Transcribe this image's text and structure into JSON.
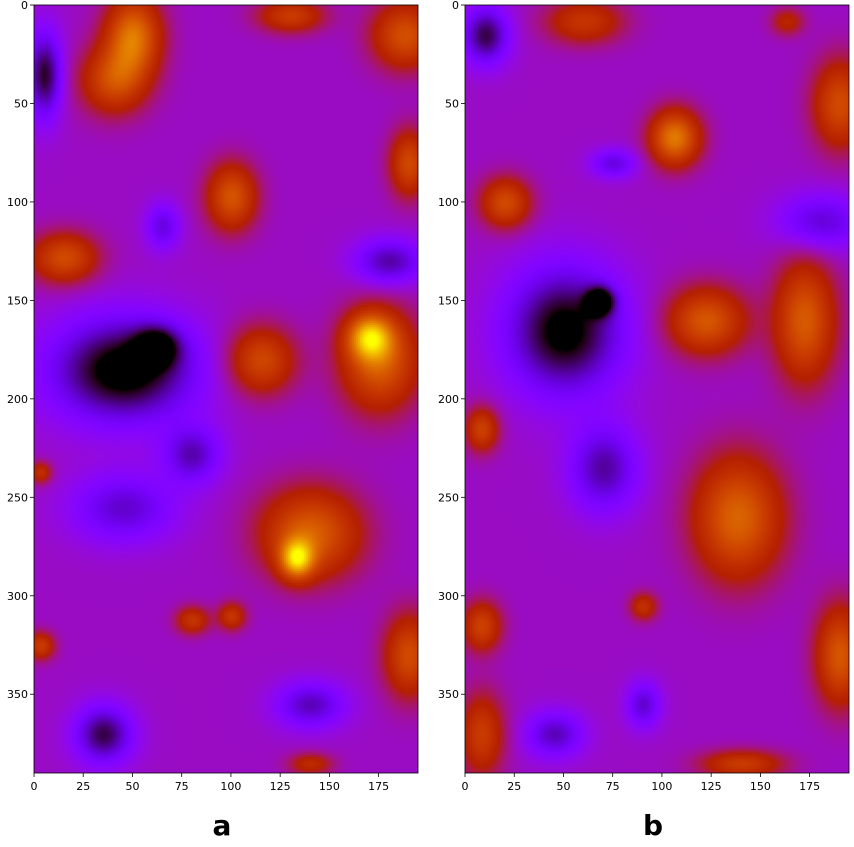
{
  "chart_data": [
    {
      "type": "heatmap",
      "panel_label": "a",
      "colormap": "gnuplot",
      "x_range": [
        0,
        195
      ],
      "y_range": [
        0,
        390
      ],
      "y_inverted": true,
      "x_ticks": [
        0,
        25,
        50,
        75,
        100,
        125,
        150,
        175
      ],
      "y_ticks": [
        0,
        50,
        100,
        150,
        200,
        250,
        300,
        350
      ],
      "blobs": [
        {
          "x": 50,
          "y": 15,
          "sx": 10,
          "sy": 14,
          "v": 0.95
        },
        {
          "x": 40,
          "y": 38,
          "sx": 12,
          "sy": 12,
          "v": 0.7
        },
        {
          "x": 130,
          "y": 5,
          "sx": 12,
          "sy": 6,
          "v": 0.6
        },
        {
          "x": 188,
          "y": 15,
          "sx": 12,
          "sy": 12,
          "v": 0.75
        },
        {
          "x": 190,
          "y": 80,
          "sx": 7,
          "sy": 12,
          "v": 0.7
        },
        {
          "x": 100,
          "y": 97,
          "sx": 9,
          "sy": 12,
          "v": 0.78
        },
        {
          "x": 15,
          "y": 128,
          "sx": 12,
          "sy": 9,
          "v": 0.72
        },
        {
          "x": 115,
          "y": 180,
          "sx": 12,
          "sy": 12,
          "v": 0.7
        },
        {
          "x": 175,
          "y": 180,
          "sx": 14,
          "sy": 18,
          "v": 0.85
        },
        {
          "x": 170,
          "y": 168,
          "sx": 8,
          "sy": 8,
          "v": 0.9
        },
        {
          "x": 140,
          "y": 268,
          "sx": 18,
          "sy": 16,
          "v": 0.85
        },
        {
          "x": 133,
          "y": 281,
          "sx": 6,
          "sy": 7,
          "v": 1.0
        },
        {
          "x": 80,
          "y": 312,
          "sx": 6,
          "sy": 5,
          "v": 0.55
        },
        {
          "x": 100,
          "y": 310,
          "sx": 5,
          "sy": 5,
          "v": 0.55
        },
        {
          "x": 190,
          "y": 330,
          "sx": 9,
          "sy": 15,
          "v": 0.72
        },
        {
          "x": 3,
          "y": 325,
          "sx": 5,
          "sy": 5,
          "v": 0.6
        },
        {
          "x": 3,
          "y": 237,
          "sx": 4,
          "sy": 4,
          "v": 0.5
        },
        {
          "x": 140,
          "y": 385,
          "sx": 8,
          "sy": 4,
          "v": 0.45
        },
        {
          "x": 5,
          "y": 35,
          "sx": 6,
          "sy": 15,
          "v": -0.8
        },
        {
          "x": 45,
          "y": 185,
          "sx": 25,
          "sy": 18,
          "v": -1.0
        },
        {
          "x": 62,
          "y": 173,
          "sx": 8,
          "sy": 7,
          "v": -0.7
        },
        {
          "x": 80,
          "y": 228,
          "sx": 10,
          "sy": 10,
          "v": -0.55
        },
        {
          "x": 45,
          "y": 255,
          "sx": 18,
          "sy": 12,
          "v": -0.5
        },
        {
          "x": 35,
          "y": 370,
          "sx": 10,
          "sy": 10,
          "v": -0.75
        },
        {
          "x": 180,
          "y": 130,
          "sx": 12,
          "sy": 8,
          "v": -0.6
        },
        {
          "x": 140,
          "y": 355,
          "sx": 12,
          "sy": 8,
          "v": -0.55
        },
        {
          "x": 65,
          "y": 112,
          "sx": 6,
          "sy": 8,
          "v": -0.45
        }
      ]
    },
    {
      "type": "heatmap",
      "panel_label": "b",
      "colormap": "gnuplot",
      "x_range": [
        0,
        195
      ],
      "y_range": [
        0,
        390
      ],
      "y_inverted": true,
      "x_ticks": [
        0,
        25,
        50,
        75,
        100,
        125,
        150,
        175
      ],
      "y_ticks": [
        0,
        50,
        100,
        150,
        200,
        250,
        300,
        350
      ],
      "blobs": [
        {
          "x": 106,
          "y": 67,
          "sx": 9,
          "sy": 10,
          "v": 1.0
        },
        {
          "x": 60,
          "y": 8,
          "sx": 14,
          "sy": 8,
          "v": 0.55
        },
        {
          "x": 190,
          "y": 50,
          "sx": 10,
          "sy": 16,
          "v": 0.72
        },
        {
          "x": 20,
          "y": 100,
          "sx": 9,
          "sy": 9,
          "v": 0.72
        },
        {
          "x": 122,
          "y": 160,
          "sx": 14,
          "sy": 12,
          "v": 0.8
        },
        {
          "x": 172,
          "y": 160,
          "sx": 11,
          "sy": 22,
          "v": 0.82
        },
        {
          "x": 8,
          "y": 215,
          "sx": 6,
          "sy": 8,
          "v": 0.65
        },
        {
          "x": 138,
          "y": 260,
          "sx": 16,
          "sy": 22,
          "v": 0.88
        },
        {
          "x": 90,
          "y": 305,
          "sx": 5,
          "sy": 5,
          "v": 0.5
        },
        {
          "x": 8,
          "y": 315,
          "sx": 7,
          "sy": 9,
          "v": 0.65
        },
        {
          "x": 190,
          "y": 330,
          "sx": 9,
          "sy": 18,
          "v": 0.8
        },
        {
          "x": 8,
          "y": 370,
          "sx": 8,
          "sy": 15,
          "v": 0.6
        },
        {
          "x": 140,
          "y": 385,
          "sx": 15,
          "sy": 5,
          "v": 0.6
        },
        {
          "x": 163,
          "y": 8,
          "sx": 6,
          "sy": 5,
          "v": 0.4
        },
        {
          "x": 10,
          "y": 15,
          "sx": 8,
          "sy": 10,
          "v": -0.75
        },
        {
          "x": 50,
          "y": 165,
          "sx": 20,
          "sy": 22,
          "v": -0.95
        },
        {
          "x": 68,
          "y": 150,
          "sx": 5,
          "sy": 5,
          "v": -0.9
        },
        {
          "x": 70,
          "y": 235,
          "sx": 12,
          "sy": 15,
          "v": -0.6
        },
        {
          "x": 75,
          "y": 80,
          "sx": 8,
          "sy": 5,
          "v": -0.45
        },
        {
          "x": 45,
          "y": 370,
          "sx": 10,
          "sy": 8,
          "v": -0.55
        },
        {
          "x": 90,
          "y": 355,
          "sx": 6,
          "sy": 8,
          "v": -0.5
        },
        {
          "x": 180,
          "y": 110,
          "sx": 15,
          "sy": 10,
          "v": -0.5
        }
      ]
    }
  ]
}
